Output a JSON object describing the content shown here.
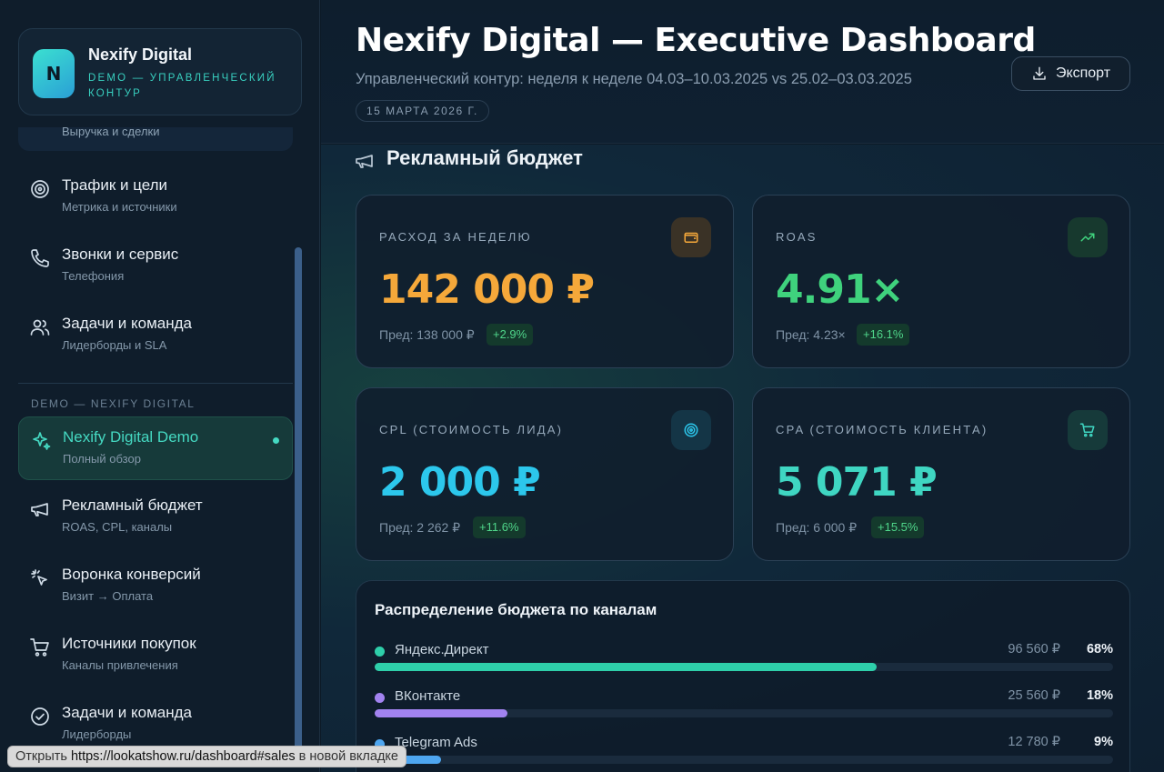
{
  "brand": {
    "logo_letter": "N",
    "title": "Nexify Digital",
    "subtitle": "DEMO — УПРАВЛЕНЧЕСКИЙ КОНТУР"
  },
  "sidebar": {
    "cutoff_item": {
      "sub": "Выручка и сделки"
    },
    "items": [
      {
        "title": "Трафик и цели",
        "sub": "Метрика и источники",
        "icon": "target-icon"
      },
      {
        "title": "Звонки и сервис",
        "sub": "Телефония",
        "icon": "phone-icon"
      },
      {
        "title": "Задачи и команда",
        "sub": "Лидерборды и SLA",
        "icon": "users-icon"
      }
    ],
    "section_label": "DEMO — NEXIFY DIGITAL",
    "demo_items": [
      {
        "title": "Nexify Digital Demo",
        "sub": "Полный обзор",
        "icon": "sparkle-icon",
        "active": true
      },
      {
        "title": "Рекламный бюджет",
        "sub": "ROAS, CPL, каналы",
        "icon": "megaphone-icon"
      },
      {
        "title": "Воронка конверсий",
        "sub": "Визит → Оплата",
        "icon": "cursor-click-icon"
      },
      {
        "title": "Источники покупок",
        "sub": "Каналы привлечения",
        "icon": "cart-icon"
      },
      {
        "title": "Задачи и команда",
        "sub": "Лидерборды",
        "icon": "check-circle-icon"
      }
    ]
  },
  "header": {
    "title": "Nexify Digital — Executive Dashboard",
    "subtitle": "Управленческий контур: неделя к неделе 04.03–10.03.2025 vs 25.02–03.03.2025",
    "date": "15 МАРТА 2026 Г.",
    "export_label": "Экспорт"
  },
  "section": {
    "title": "Рекламный бюджет",
    "icon": "megaphone-icon"
  },
  "kpis": [
    {
      "label": "РАСХОД ЗА НЕДЕЛЮ",
      "value": "142 000 ₽",
      "prev": "Пред: 138 000 ₽",
      "delta": "+2.9%",
      "icon": "wallet-icon",
      "color": "#f5a83a",
      "icon_bg": "#3a3226",
      "icon_color": "#f5a83a"
    },
    {
      "label": "ROAS",
      "value": "4.91×",
      "prev": "Пред: 4.23×",
      "delta": "+16.1%",
      "icon": "trend-up-icon",
      "color": "#3fd27d",
      "icon_bg": "#17392e",
      "icon_color": "#3fd27d"
    },
    {
      "label": "CPL (СТОИМОСТЬ ЛИДА)",
      "value": "2 000 ₽",
      "prev": "Пред: 2 262 ₽",
      "delta": "+11.6%",
      "icon": "target-icon",
      "color": "#2cc7ec",
      "icon_bg": "#143546",
      "icon_color": "#2cc7ec"
    },
    {
      "label": "CPA (СТОИМОСТЬ КЛИЕНТА)",
      "value": "5 071 ₽",
      "prev": "Пред: 6 000 ₽",
      "delta": "+15.5%",
      "icon": "cart-icon",
      "color": "#3fd6c2",
      "icon_bg": "#163a3a",
      "icon_color": "#3fd6c2"
    }
  ],
  "channels": {
    "title": "Распределение бюджета по каналам",
    "rows": [
      {
        "name": "Яндекс.Директ",
        "amount": "96 560 ₽",
        "pct": "68%",
        "share": 0.68,
        "color": "#2ecfaa"
      },
      {
        "name": "ВКонтакте",
        "amount": "25 560 ₽",
        "pct": "18%",
        "share": 0.18,
        "color": "#a283f0"
      },
      {
        "name": "Telegram Ads",
        "amount": "12 780 ₽",
        "pct": "9%",
        "share": 0.09,
        "color": "#4ea6f0"
      }
    ]
  },
  "statusbar": {
    "prefix": "Открыть",
    "url": "https://lookatshow.ru/dashboard#sales",
    "suffix": "в новой вкладке"
  }
}
